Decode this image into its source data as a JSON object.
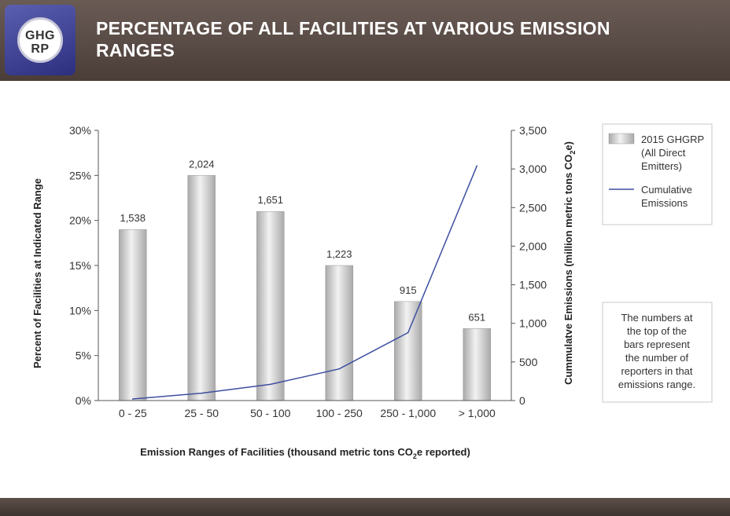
{
  "header": {
    "logo_line1": "GHG",
    "logo_line2": "RP",
    "title_line1": "PERCENTAGE OF ALL FACILITIES AT VARIOUS EMISSION",
    "title_line2": "RANGES"
  },
  "chart_data": {
    "type": "bar",
    "categories": [
      "0 - 25",
      "25 - 50",
      "50 - 100",
      "100 - 250",
      "250 - 1,000",
      "> 1,000"
    ],
    "series": [
      {
        "name": "2015 GHGRP (All Direct Emitters)",
        "axis": "left",
        "type": "bar",
        "values": [
          19,
          25,
          21,
          15,
          11,
          8
        ],
        "bar_labels": [
          "1,538",
          "2,024",
          "1,651",
          "1,223",
          "915",
          "651"
        ],
        "color": "#cfcfcf"
      },
      {
        "name": "Cumulative Emissions",
        "axis": "right",
        "type": "line",
        "values": [
          20,
          95,
          210,
          410,
          880,
          3040
        ],
        "color": "#3d4fa0"
      }
    ],
    "y_left": {
      "label": "Percent of Facilities at Indicated Range",
      "range": [
        0,
        30
      ],
      "ticks": [
        "0%",
        "5%",
        "10%",
        "15%",
        "20%",
        "25%",
        "30%"
      ]
    },
    "y_right": {
      "label_main": "Cummulatve Emissions (million metric tons CO",
      "label_sub": "2",
      "label_end": "e)",
      "range": [
        0,
        3500
      ],
      "ticks": [
        "0",
        "500",
        "1,000",
        "1,500",
        "2,000",
        "2,500",
        "3,000",
        "3,500"
      ]
    },
    "x_axis": {
      "label_main": "Emission Ranges of Facilities (thousand metric tons CO",
      "label_sub": "2",
      "label_end": "e reported)"
    },
    "legend": {
      "position": "right",
      "bar_entry": [
        "2015 GHGRP",
        "(All Direct",
        "Emitters)"
      ],
      "line_entry": [
        "Cumulative",
        "Emissions"
      ]
    },
    "note": [
      "The numbers at",
      "the top of the",
      "bars represent",
      "the number of",
      "reporters in that",
      "emissions range."
    ],
    "grid": false
  }
}
